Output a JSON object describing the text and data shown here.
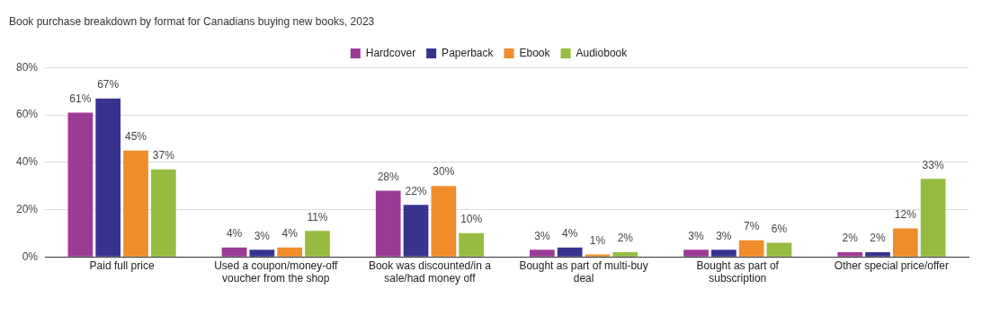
{
  "chart_data": {
    "type": "bar",
    "title": "Book purchase breakdown by format for Canadians buying new books, 2023",
    "categories": [
      "Paid full price",
      "Used a coupon/money-off voucher from the shop",
      "Book was discounted/in a sale/had money off",
      "Bought as part of multi-buy deal",
      "Bought as part of subscription",
      "Other special price/offer"
    ],
    "series": [
      {
        "name": "Hardcover",
        "color": "#9c3b96",
        "values": [
          61,
          4,
          28,
          3,
          3,
          2
        ],
        "value_labels": [
          "61%",
          "4%",
          "28%",
          "3%",
          "3%",
          "2%"
        ]
      },
      {
        "name": "Paperback",
        "color": "#38338f",
        "values": [
          67,
          3,
          22,
          4,
          3,
          2
        ],
        "value_labels": [
          "67%",
          "3%",
          "22%",
          "4%",
          "3%",
          "2%"
        ]
      },
      {
        "name": "Ebook",
        "color": "#f08c2a",
        "values": [
          45,
          4,
          30,
          1,
          7,
          12
        ],
        "value_labels": [
          "45%",
          "4%",
          "30%",
          "1%",
          "7%",
          "12%"
        ]
      },
      {
        "name": "Audiobook",
        "color": "#95bc40",
        "values": [
          37,
          11,
          10,
          2,
          6,
          33
        ],
        "value_labels": [
          "37%",
          "11%",
          "10%",
          "2%",
          "6%",
          "33%"
        ]
      }
    ],
    "ylim": [
      0,
      80
    ],
    "yticks": [
      {
        "value": 0,
        "label": "0%"
      },
      {
        "value": 20,
        "label": "20%"
      },
      {
        "value": 40,
        "label": "40%"
      },
      {
        "value": 60,
        "label": "60%"
      },
      {
        "value": 80,
        "label": "80%"
      }
    ],
    "grid": "y",
    "legend": "top"
  }
}
